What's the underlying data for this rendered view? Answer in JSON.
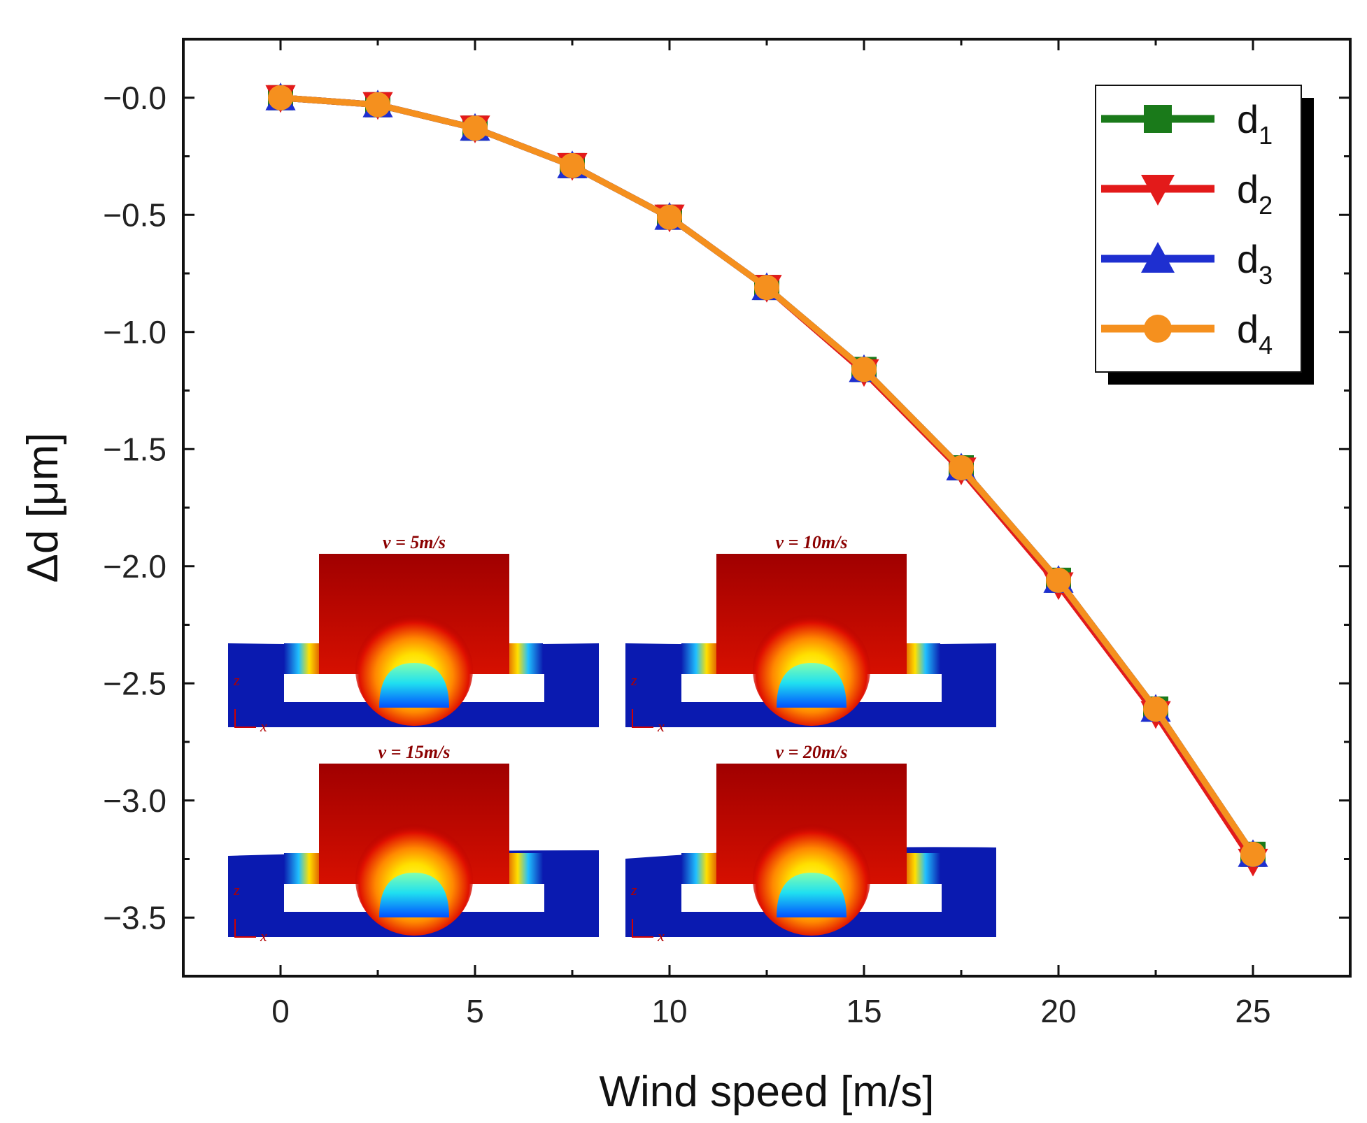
{
  "chart_data": {
    "type": "line",
    "xlabel": "Wind speed [m/s]",
    "ylabel": "Δd [μm]",
    "xlim": [
      -2.5,
      27.5
    ],
    "ylim": [
      -3.75,
      0.25
    ],
    "x_ticks": [
      0,
      5,
      10,
      15,
      20,
      25
    ],
    "x_tick_labels": [
      "0",
      "5",
      "10",
      "15",
      "20",
      "25"
    ],
    "y_ticks": [
      0.0,
      -0.5,
      -1.0,
      -1.5,
      -2.0,
      -2.5,
      -3.0,
      -3.5
    ],
    "y_tick_labels": [
      "−0.0",
      "−0.5",
      "−1.0",
      "−1.5",
      "−2.0",
      "−2.5",
      "−3.0",
      "−3.5"
    ],
    "legend_position": "top-right",
    "x": [
      0,
      2.5,
      5,
      7.5,
      10,
      12.5,
      15,
      17.5,
      20,
      22.5,
      25
    ],
    "series": [
      {
        "name": "d",
        "subscript": "1",
        "color": "#1a7a1a",
        "marker": "square",
        "values": [
          0.0,
          -0.03,
          -0.13,
          -0.29,
          -0.51,
          -0.81,
          -1.16,
          -1.58,
          -2.06,
          -2.61,
          -3.23
        ]
      },
      {
        "name": "d",
        "subscript": "2",
        "color": "#e31a1a",
        "marker": "triangle-down",
        "values": [
          0.0,
          -0.03,
          -0.13,
          -0.29,
          -0.51,
          -0.81,
          -1.17,
          -1.59,
          -2.08,
          -2.63,
          -3.26
        ]
      },
      {
        "name": "d",
        "subscript": "3",
        "color": "#1e2fd0",
        "marker": "triangle-up",
        "values": [
          0.0,
          -0.03,
          -0.13,
          -0.29,
          -0.51,
          -0.81,
          -1.16,
          -1.58,
          -2.06,
          -2.61,
          -3.23
        ]
      },
      {
        "name": "d",
        "subscript": "4",
        "color": "#f5901e",
        "marker": "circle",
        "values": [
          0.0,
          -0.03,
          -0.13,
          -0.29,
          -0.51,
          -0.81,
          -1.16,
          -1.58,
          -2.06,
          -2.61,
          -3.23
        ]
      }
    ],
    "insets": [
      {
        "title": "v = 5m/s",
        "axis_z": "z",
        "axis_x": "x",
        "stage": 0
      },
      {
        "title": "v = 10m/s",
        "axis_z": "z",
        "axis_x": "x",
        "stage": 1
      },
      {
        "title": "v = 15m/s",
        "axis_z": "z",
        "axis_x": "x",
        "stage": 2
      },
      {
        "title": "v = 20m/s",
        "axis_z": "z",
        "axis_x": "x",
        "stage": 3
      }
    ]
  }
}
